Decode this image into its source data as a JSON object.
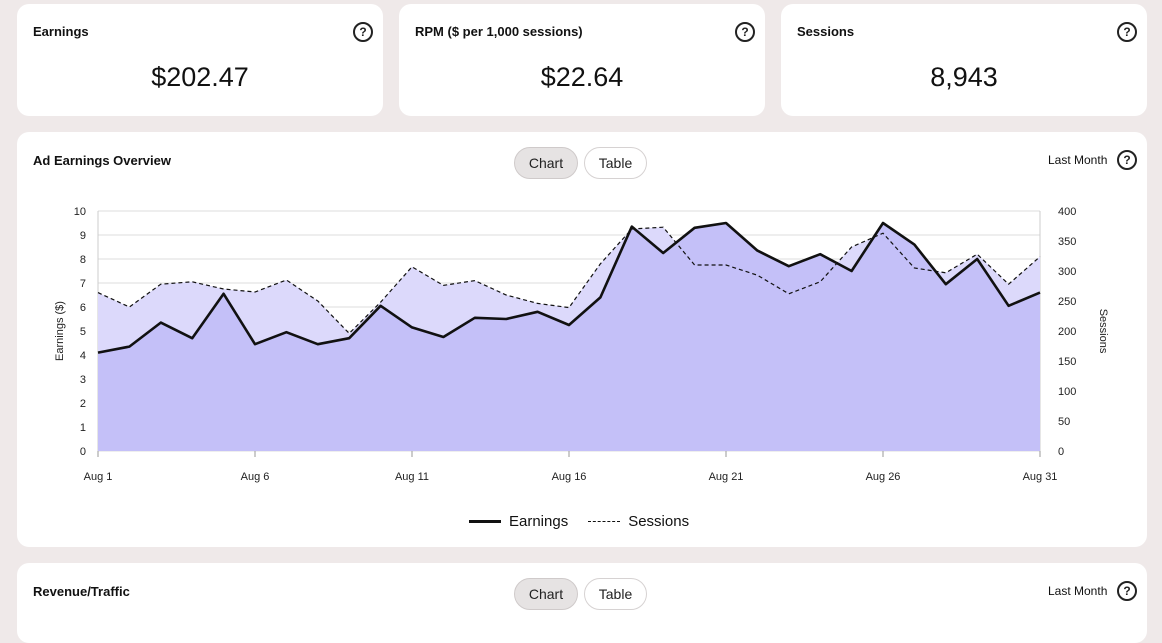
{
  "kpis": [
    {
      "title": "Earnings",
      "value": "$202.47"
    },
    {
      "title": "RPM ($ per 1,000 sessions)",
      "value": "$22.64"
    },
    {
      "title": "Sessions",
      "value": "8,943"
    }
  ],
  "overview": {
    "title": "Ad Earnings Overview",
    "tabs": [
      "Chart",
      "Table"
    ],
    "active_tab": "Chart",
    "range": "Last Month"
  },
  "revenue": {
    "title": "Revenue/Traffic",
    "tabs": [
      "Chart",
      "Table"
    ],
    "active_tab": "Chart",
    "range": "Last Month"
  },
  "help_glyph": "?",
  "colors": {
    "page_bg": "#efe9e9",
    "sessions_fill": "#dcd9fb",
    "earnings_fill": "#c4c0f8",
    "line": "#111111"
  },
  "chart_data": {
    "type": "area",
    "xlabel": "",
    "ylabel": "Earnings ($)",
    "y2label": "Sessions",
    "x_ticks": [
      "Aug 1",
      "Aug 6",
      "Aug 11",
      "Aug 16",
      "Aug 21",
      "Aug 26",
      "Aug 31"
    ],
    "ylim": [
      0,
      10
    ],
    "y2lim": [
      0,
      400
    ],
    "y_ticks": [
      0,
      1,
      2,
      3,
      4,
      5,
      6,
      7,
      8,
      9,
      10
    ],
    "y2_ticks": [
      0,
      50,
      100,
      150,
      200,
      250,
      300,
      350,
      400
    ],
    "grid": true,
    "legend": "bottom",
    "x": [
      "Aug 1",
      "Aug 2",
      "Aug 3",
      "Aug 4",
      "Aug 5",
      "Aug 6",
      "Aug 7",
      "Aug 8",
      "Aug 9",
      "Aug 10",
      "Aug 11",
      "Aug 12",
      "Aug 13",
      "Aug 14",
      "Aug 15",
      "Aug 16",
      "Aug 17",
      "Aug 18",
      "Aug 19",
      "Aug 20",
      "Aug 21",
      "Aug 22",
      "Aug 23",
      "Aug 24",
      "Aug 25",
      "Aug 26",
      "Aug 27",
      "Aug 28",
      "Aug 29",
      "Aug 30",
      "Aug 31"
    ],
    "series": [
      {
        "name": "Earnings",
        "axis": "left",
        "style": "solid",
        "values": [
          4.1,
          4.35,
          5.35,
          4.7,
          6.55,
          4.45,
          4.95,
          4.45,
          4.7,
          6.05,
          5.15,
          4.75,
          5.55,
          5.5,
          5.8,
          5.25,
          6.4,
          9.35,
          8.25,
          9.3,
          9.5,
          8.35,
          7.7,
          8.2,
          7.5,
          9.5,
          8.6,
          6.95,
          8.0,
          6.05,
          6.6
        ]
      },
      {
        "name": "Sessions",
        "axis": "right",
        "style": "dashed",
        "values": [
          264,
          240,
          278,
          282,
          270,
          265,
          285,
          250,
          196,
          248,
          307,
          276,
          284,
          260,
          246,
          239,
          312,
          370,
          373,
          310,
          310,
          293,
          262,
          282,
          340,
          363,
          305,
          297,
          328,
          278,
          324
        ]
      }
    ]
  }
}
